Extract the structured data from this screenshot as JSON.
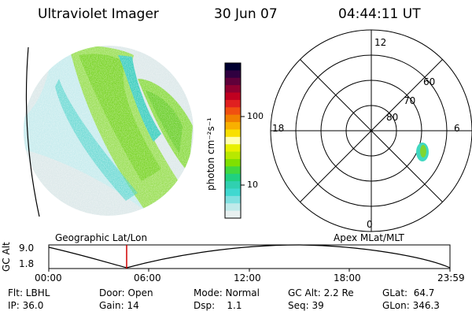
{
  "header": {
    "instrument": "Ultraviolet Imager",
    "date": "30 Jun 07",
    "time": "04:44:11 UT"
  },
  "colorbar": {
    "unit_label": "photon cm⁻²s⁻¹",
    "ticks": [
      "100",
      "10"
    ],
    "colors": [
      "#000030",
      "#300040",
      "#60003a",
      "#900030",
      "#c00020",
      "#e02020",
      "#f05010",
      "#f08000",
      "#f8b000",
      "#f8e000",
      "#ffffb0",
      "#e8f000",
      "#b8e800",
      "#80e000",
      "#40d840",
      "#20d080",
      "#30d0b0",
      "#40d8d0",
      "#80e0e0",
      "#c0eaea",
      "#e8f0f0"
    ]
  },
  "polar": {
    "mlt_labels": {
      "top": "12",
      "left": "18",
      "right": "6",
      "bottom": "0"
    },
    "lat_labels": [
      "60",
      "70",
      "80"
    ]
  },
  "timeline": {
    "left_label": "Geographic Lat/Lon",
    "right_label": "Apex MLat/MLT",
    "axis_title": "GC Alt",
    "y_ticks": [
      "9.0",
      "1.8"
    ],
    "x_ticks": [
      "00:00",
      "06:00",
      "12:00",
      "18:00",
      "23:59"
    ],
    "marker_color": "#d00000"
  },
  "status": {
    "flt": "Flt: LBHL",
    "door": "Door: Open",
    "mode": "Mode: Normal",
    "gc_alt": "GC Alt: 2.2 Re",
    "glat": "GLat:  64.7",
    "ip": "IP: 36.0",
    "gain": "Gain: 14",
    "dsp": "Dsp:    1.1",
    "seq": "Seq: 39",
    "glon": "GLon: 346.3"
  }
}
